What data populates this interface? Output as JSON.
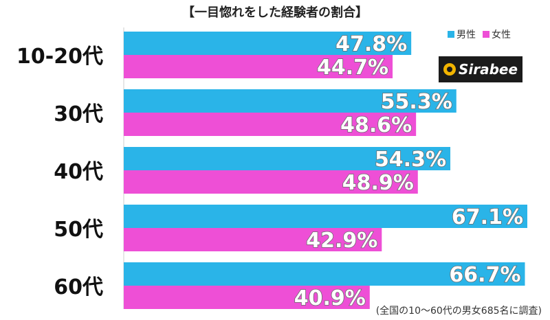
{
  "chart_data": {
    "type": "bar",
    "orientation": "horizontal",
    "title": "【一目惚れをした経験者の割合】",
    "categories": [
      "10-20代",
      "30代",
      "40代",
      "50代",
      "60代"
    ],
    "series": [
      {
        "name": "男性",
        "color": "#2ab4e8",
        "values": [
          47.8,
          55.3,
          54.3,
          67.1,
          66.7
        ]
      },
      {
        "name": "女性",
        "color": "#ee4fd6",
        "values": [
          44.7,
          48.6,
          48.9,
          42.9,
          40.9
        ]
      }
    ],
    "value_format": "%",
    "xlim": [
      0,
      70
    ],
    "grid": false,
    "legend_position": "top-right"
  },
  "logo": {
    "text": "Sirabee"
  },
  "footnote": "(全国の10～60代の男女685名に調査)"
}
